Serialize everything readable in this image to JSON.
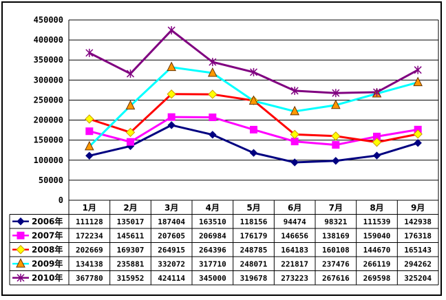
{
  "chart_data": {
    "type": "line",
    "categories": [
      "1月",
      "2月",
      "3月",
      "4月",
      "5月",
      "6月",
      "7月",
      "8月",
      "9月"
    ],
    "ylim": [
      0,
      450000
    ],
    "yticks": [
      "450000",
      "400000",
      "350000",
      "300000",
      "250000",
      "200000",
      "150000",
      "100000",
      "50000",
      "0"
    ],
    "grid": true,
    "legend": "data-table-left",
    "series": [
      {
        "name": "2006年",
        "color": "#000080",
        "marker": "diamond",
        "values": [
          111128,
          135017,
          187404,
          163510,
          118156,
          94474,
          98321,
          111539,
          142938
        ]
      },
      {
        "name": "2007年",
        "color": "#ff00ff",
        "marker": "square",
        "values": [
          172234,
          145611,
          207605,
          206984,
          176179,
          146656,
          138169,
          159040,
          176318
        ]
      },
      {
        "name": "2008年",
        "color": "#ff0000",
        "marker": "diamond-yellow",
        "values": [
          202669,
          169307,
          264915,
          264396,
          248785,
          164183,
          160108,
          144670,
          165143
        ]
      },
      {
        "name": "2009年",
        "color": "#00ffff",
        "marker": "triangle-orange",
        "values": [
          134138,
          235881,
          332072,
          317710,
          248071,
          221817,
          237476,
          266119,
          294262
        ]
      },
      {
        "name": "2010年",
        "color": "#800080",
        "marker": "star",
        "values": [
          367780,
          315952,
          424114,
          345000,
          319678,
          273223,
          267616,
          269598,
          325204
        ]
      }
    ]
  }
}
